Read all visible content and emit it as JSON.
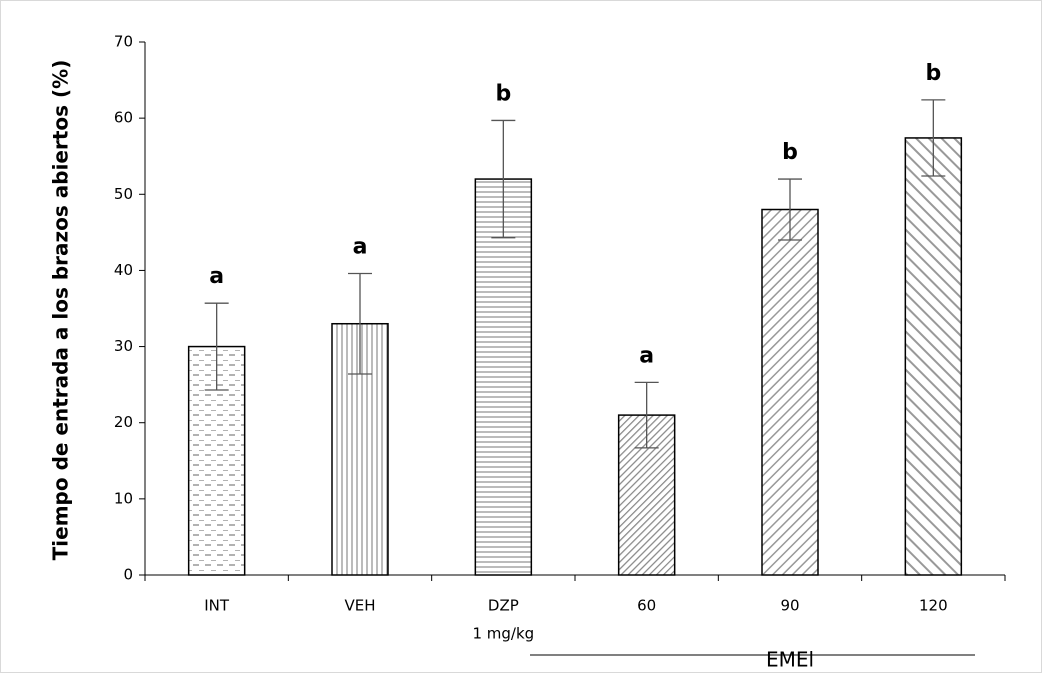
{
  "chart_data": {
    "type": "bar",
    "y_label": "Tiempo de entrada a los brazos abiertos (%)",
    "categories": [
      "INT",
      "VEH",
      "DZP",
      "60",
      "90",
      "120"
    ],
    "category_sublabels": [
      null,
      null,
      "1 mg/kg",
      null,
      null,
      null
    ],
    "values": [
      30,
      33,
      52,
      21,
      48,
      57.4
    ],
    "errors": [
      5.7,
      6.6,
      7.7,
      4.3,
      4.0,
      5.0
    ],
    "annotations": [
      "a",
      "a",
      "b",
      "a",
      "b",
      "b"
    ],
    "patterns": [
      "dashes",
      "vertical",
      "horizontal",
      "diagonal-dense",
      "diagonal",
      "diagonal-wide"
    ],
    "group": {
      "label": "EMEl",
      "from": 3,
      "to": 5
    },
    "ylim": [
      0,
      70
    ],
    "yticks": [
      0,
      10,
      20,
      30,
      40,
      50,
      60,
      70
    ],
    "grid": false
  }
}
